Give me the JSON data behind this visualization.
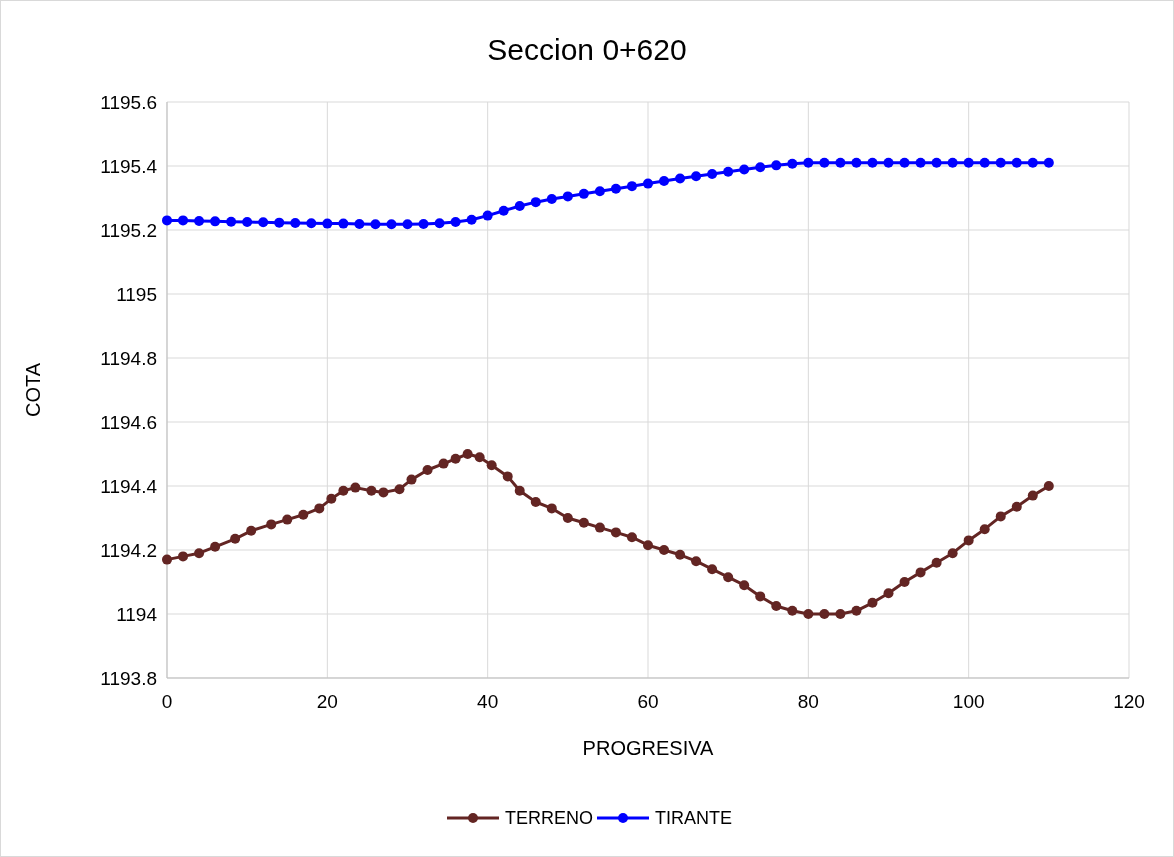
{
  "chart_data": {
    "type": "line",
    "title": "Seccion 0+620",
    "xlabel": "PROGRESIVA",
    "ylabel": "COTA",
    "xlim": [
      0,
      120
    ],
    "xticks": [
      0,
      20,
      40,
      60,
      80,
      100,
      120
    ],
    "ylim": [
      1193.8,
      1195.6
    ],
    "yticks": [
      1193.8,
      1194,
      1194.2,
      1194.4,
      1194.6,
      1194.8,
      1195,
      1195.2,
      1195.4,
      1195.6
    ],
    "grid": true,
    "legend": "bottom",
    "marker": "circle",
    "line_style": "solid",
    "series": [
      {
        "name": "TERRENO",
        "color": "#632523",
        "x": [
          0,
          2,
          4,
          6,
          8.5,
          10.5,
          13,
          15,
          17,
          19,
          20.5,
          22,
          23.5,
          25.5,
          27,
          29,
          30.5,
          32.5,
          34.5,
          36,
          37.5,
          39,
          40.5,
          42.5,
          44,
          46,
          48,
          50,
          52,
          54,
          56,
          58,
          60,
          62,
          64,
          66,
          68,
          70,
          72,
          74,
          76,
          78,
          80,
          82,
          84,
          86,
          88,
          90,
          92,
          94,
          96,
          98,
          100,
          102,
          104,
          106,
          108,
          110
        ],
        "values": [
          1194.17,
          1194.18,
          1194.19,
          1194.21,
          1194.235,
          1194.26,
          1194.28,
          1194.295,
          1194.31,
          1194.33,
          1194.36,
          1194.385,
          1194.395,
          1194.385,
          1194.38,
          1194.39,
          1194.42,
          1194.45,
          1194.47,
          1194.485,
          1194.5,
          1194.49,
          1194.465,
          1194.43,
          1194.385,
          1194.35,
          1194.33,
          1194.3,
          1194.285,
          1194.27,
          1194.255,
          1194.24,
          1194.215,
          1194.2,
          1194.185,
          1194.165,
          1194.14,
          1194.115,
          1194.09,
          1194.055,
          1194.025,
          1194.01,
          1194.0,
          1194.0,
          1194.0,
          1194.01,
          1194.035,
          1194.065,
          1194.1,
          1194.13,
          1194.16,
          1194.19,
          1194.23,
          1194.265,
          1194.305,
          1194.335,
          1194.37,
          1194.4
        ]
      },
      {
        "name": "TIRANTE",
        "color": "#0000ff",
        "x": [
          0,
          2,
          4,
          6,
          8,
          10,
          12,
          14,
          16,
          18,
          20,
          22,
          24,
          26,
          28,
          30,
          32,
          34,
          36,
          38,
          40,
          42,
          44,
          46,
          48,
          50,
          52,
          54,
          56,
          58,
          60,
          62,
          64,
          66,
          68,
          70,
          72,
          74,
          76,
          78,
          80,
          82,
          84,
          86,
          88,
          90,
          92,
          94,
          96,
          98,
          100,
          102,
          104,
          106,
          108,
          110
        ],
        "values": [
          1195.23,
          1195.23,
          1195.228,
          1195.227,
          1195.226,
          1195.225,
          1195.224,
          1195.223,
          1195.222,
          1195.221,
          1195.22,
          1195.22,
          1195.219,
          1195.218,
          1195.218,
          1195.218,
          1195.219,
          1195.221,
          1195.225,
          1195.232,
          1195.245,
          1195.26,
          1195.275,
          1195.287,
          1195.297,
          1195.305,
          1195.313,
          1195.321,
          1195.329,
          1195.337,
          1195.345,
          1195.353,
          1195.361,
          1195.368,
          1195.375,
          1195.382,
          1195.389,
          1195.396,
          1195.402,
          1195.407,
          1195.41,
          1195.41,
          1195.41,
          1195.41,
          1195.41,
          1195.41,
          1195.41,
          1195.41,
          1195.41,
          1195.41,
          1195.41,
          1195.41,
          1195.41,
          1195.41,
          1195.41,
          1195.41
        ]
      }
    ]
  }
}
